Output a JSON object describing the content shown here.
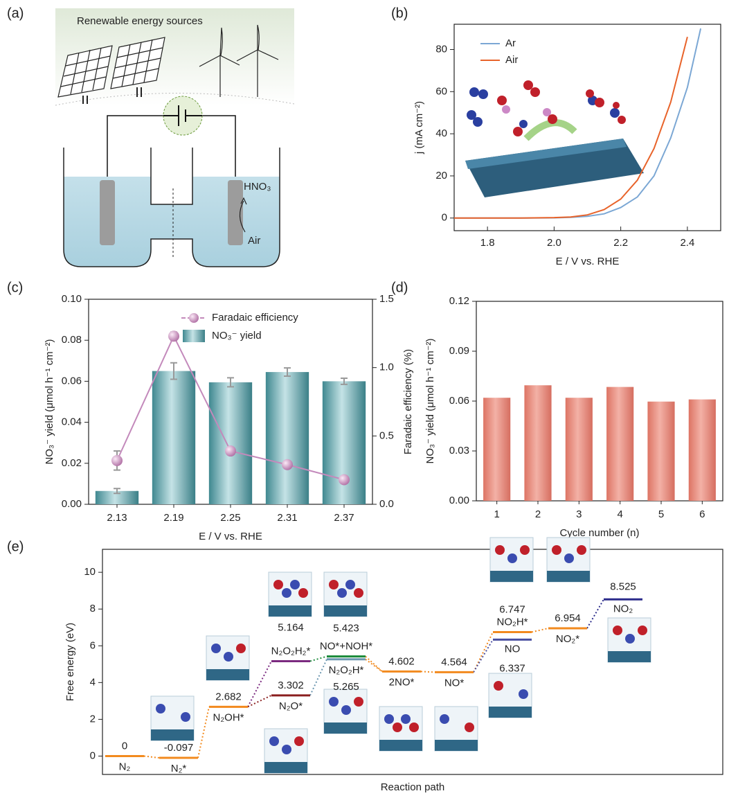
{
  "panel_labels": [
    "(a)",
    "(b)",
    "(c)",
    "(d)",
    "(e)"
  ],
  "schematic": {
    "title": "Renewable energy sources",
    "product": "HNO₃",
    "feed": "Air"
  },
  "chart_data": [
    {
      "type": "line",
      "xlabel": "E / V vs. RHE",
      "ylabel": "j (mA cm⁻²)",
      "x": [
        1.7,
        1.8,
        1.9,
        2.0,
        2.05,
        2.1,
        2.15,
        2.2,
        2.25,
        2.3,
        2.35,
        2.4,
        2.44
      ],
      "series": [
        {
          "name": "Ar",
          "color": "#7ba7d4",
          "values": [
            0,
            0,
            0,
            0.1,
            0.3,
            0.8,
            2,
            5,
            10,
            20,
            38,
            62,
            90
          ]
        },
        {
          "name": "Air",
          "color": "#e8632a",
          "values": [
            0,
            0,
            0,
            0.2,
            0.5,
            1.5,
            4,
            9,
            18,
            33,
            55,
            86,
            null
          ]
        }
      ],
      "xlim": [
        1.7,
        2.5
      ],
      "xticks": [
        1.8,
        {
          "value": 2.0,
          "label": "2.0"
        },
        2.2,
        2.4
      ],
      "ylim": [
        -6,
        92
      ],
      "yticks": [
        0,
        20,
        40,
        60,
        80
      ],
      "legend": "top-left"
    },
    {
      "type": "combo",
      "xlabel": "E / V vs. RHE",
      "ylabel": "NO₃⁻ yield (μmol h⁻¹ cm⁻²)",
      "y2label": "Faradaic efficiency (%)",
      "categories": [
        "2.13",
        "2.19",
        "2.25",
        "2.31",
        "2.37"
      ],
      "series": [
        {
          "name": "Faradaic efficiency",
          "kind": "line",
          "axis": "y2",
          "color": "#c389bb",
          "values": [
            0.32,
            1.23,
            0.39,
            0.29,
            0.18
          ],
          "errors": [
            0.07,
            0.03,
            0.02,
            0.02,
            0.02
          ]
        },
        {
          "name": "NO₃⁻ yield",
          "kind": "bar",
          "color": "#4f9aa0",
          "values": [
            0.0065,
            0.065,
            0.0595,
            0.0645,
            0.06
          ],
          "errors": [
            0.0012,
            0.004,
            0.0022,
            0.002,
            0.0015
          ]
        }
      ],
      "ylim": [
        0,
        0.1
      ],
      "yticks": [
        {
          "value": 0,
          "label": "0.00"
        },
        {
          "value": 0.02,
          "label": "0.02"
        },
        {
          "value": 0.04,
          "label": "0.04"
        },
        {
          "value": 0.06,
          "label": "0.06"
        },
        {
          "value": 0.08,
          "label": "0.08"
        },
        {
          "value": 0.1,
          "label": "0.10"
        }
      ],
      "y2lim": [
        0,
        1.5
      ],
      "y2ticks": [
        {
          "value": 0,
          "label": "0.0"
        },
        0.5,
        {
          "value": 1,
          "label": "1.0"
        },
        1.5
      ]
    },
    {
      "type": "bar",
      "xlabel": "Cycle number (n)",
      "ylabel": "NO₃⁻ yield (μmol h⁻¹ cm⁻²)",
      "categories": [
        "1",
        "2",
        "3",
        "4",
        "5",
        "6"
      ],
      "values": [
        0.062,
        0.0695,
        0.062,
        0.0685,
        0.0597,
        0.061
      ],
      "color": "#e58a7c",
      "ylim": [
        0,
        0.12
      ],
      "yticks": [
        {
          "value": 0,
          "label": "0.00"
        },
        {
          "value": 0.03,
          "label": "0.03"
        },
        {
          "value": 0.06,
          "label": "0.06"
        },
        {
          "value": 0.09,
          "label": "0.09"
        },
        {
          "value": 0.12,
          "label": "0.12"
        }
      ]
    },
    {
      "type": "energy-diagram",
      "xlabel": "Reaction path",
      "ylabel": "Free energy (eV)",
      "ylim": [
        -1,
        11.25
      ],
      "yticks": [
        0,
        2,
        4,
        6,
        8,
        10
      ],
      "levels": [
        {
          "name": "N₂",
          "value": 0,
          "color": "#f28a1e"
        },
        {
          "name": "N₂*",
          "value": -0.097,
          "color": "#f28a1e"
        },
        {
          "name": "N₂OH*",
          "value": 2.682,
          "color": "#f28a1e"
        },
        {
          "name": "N₂O₂H₂*",
          "value": 5.164,
          "color": "#7b2a80"
        },
        {
          "name": "N₂O*",
          "value": 3.302,
          "color": "#8b1f1f"
        },
        {
          "name": "NO*+NOH*",
          "value": 5.423,
          "color": "#1a8a3a"
        },
        {
          "name": "N₂O₂H*",
          "value": 5.265,
          "color": "#6c97b0"
        },
        {
          "name": "2NO*",
          "value": 4.602,
          "color": "#f28a1e"
        },
        {
          "name": "NO*",
          "value": 4.564,
          "color": "#f28a1e"
        },
        {
          "name": "NO₂H*",
          "value": 6.747,
          "color": "#f28a1e"
        },
        {
          "name": "NO",
          "value": 6.337,
          "color": "#4a4fa0"
        },
        {
          "name": "NO₂*",
          "value": 6.954,
          "color": "#f28a1e"
        },
        {
          "name": "NO₂",
          "value": 8.525,
          "color": "#2a2a8a"
        }
      ]
    }
  ]
}
